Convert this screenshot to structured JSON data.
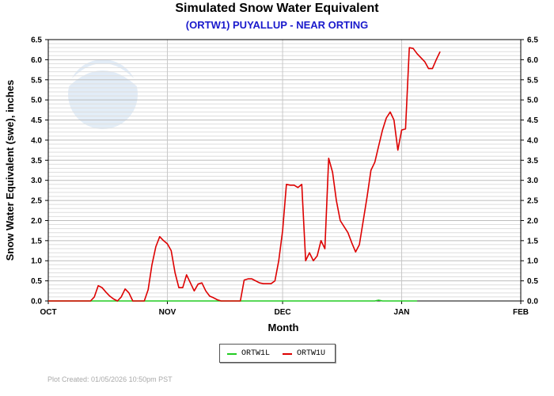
{
  "title": "Simulated Snow Water Equivalent",
  "subtitle": "(ORTW1) PUYALLUP - NEAR ORTING",
  "footer": "Plot Created:  01/05/2026 10:50pm PST",
  "logo_text": "NOAA",
  "chart_data": {
    "type": "line",
    "xlabel": "Month",
    "ylabel": "Snow Water Equivalent (swe),  inches",
    "x_ticks": [
      "OCT",
      "NOV",
      "DEC",
      "JAN",
      "FEB"
    ],
    "y_ticks": [
      "0.0",
      "0.5",
      "1.0",
      "1.5",
      "2.0",
      "2.5",
      "3.0",
      "3.5",
      "4.0",
      "4.5",
      "5.0",
      "5.5",
      "6.0",
      "6.5"
    ],
    "xlim": [
      "2025-10-01",
      "2026-02-01"
    ],
    "ylim": [
      0,
      6.5
    ],
    "grid": true,
    "legend_position": "bottom-center",
    "series": [
      {
        "name": "ORTW1L",
        "color": "#22cc22",
        "points": [
          [
            "2025-10-01",
            0.0
          ],
          [
            "2025-12-25",
            0.0
          ],
          [
            "2025-12-26",
            0.02
          ],
          [
            "2025-12-27",
            0.0
          ],
          [
            "2026-01-05",
            0.0
          ]
        ]
      },
      {
        "name": "ORTW1U",
        "color": "#dd0000",
        "points": [
          [
            "2025-10-01",
            0.0
          ],
          [
            "2025-10-12",
            0.0
          ],
          [
            "2025-10-13",
            0.1
          ],
          [
            "2025-10-14",
            0.38
          ],
          [
            "2025-10-15",
            0.33
          ],
          [
            "2025-10-16",
            0.22
          ],
          [
            "2025-10-17",
            0.12
          ],
          [
            "2025-10-18",
            0.05
          ],
          [
            "2025-10-19",
            0.0
          ],
          [
            "2025-10-20",
            0.1
          ],
          [
            "2025-10-21",
            0.3
          ],
          [
            "2025-10-22",
            0.2
          ],
          [
            "2025-10-23",
            0.0
          ],
          [
            "2025-10-26",
            0.0
          ],
          [
            "2025-10-27",
            0.28
          ],
          [
            "2025-10-28",
            0.9
          ],
          [
            "2025-10-29",
            1.35
          ],
          [
            "2025-10-30",
            1.6
          ],
          [
            "2025-10-31",
            1.5
          ],
          [
            "2025-11-01",
            1.42
          ],
          [
            "2025-11-02",
            1.25
          ],
          [
            "2025-11-03",
            0.7
          ],
          [
            "2025-11-04",
            0.33
          ],
          [
            "2025-11-05",
            0.33
          ],
          [
            "2025-11-06",
            0.65
          ],
          [
            "2025-11-07",
            0.45
          ],
          [
            "2025-11-08",
            0.25
          ],
          [
            "2025-11-09",
            0.42
          ],
          [
            "2025-11-10",
            0.45
          ],
          [
            "2025-11-11",
            0.25
          ],
          [
            "2025-11-12",
            0.12
          ],
          [
            "2025-11-13",
            0.08
          ],
          [
            "2025-11-14",
            0.03
          ],
          [
            "2025-11-15",
            0.0
          ],
          [
            "2025-11-20",
            0.0
          ],
          [
            "2025-11-21",
            0.52
          ],
          [
            "2025-11-22",
            0.55
          ],
          [
            "2025-11-23",
            0.55
          ],
          [
            "2025-11-24",
            0.5
          ],
          [
            "2025-11-25",
            0.45
          ],
          [
            "2025-11-26",
            0.43
          ],
          [
            "2025-11-28",
            0.43
          ],
          [
            "2025-11-29",
            0.5
          ],
          [
            "2025-11-30",
            1.0
          ],
          [
            "2025-12-01",
            1.75
          ],
          [
            "2025-12-02",
            2.9
          ],
          [
            "2025-12-03",
            2.88
          ],
          [
            "2025-12-04",
            2.88
          ],
          [
            "2025-12-05",
            2.82
          ],
          [
            "2025-12-06",
            2.9
          ],
          [
            "2025-12-07",
            1.0
          ],
          [
            "2025-12-08",
            1.2
          ],
          [
            "2025-12-09",
            1.0
          ],
          [
            "2025-12-10",
            1.12
          ],
          [
            "2025-12-11",
            1.5
          ],
          [
            "2025-12-12",
            1.3
          ],
          [
            "2025-12-13",
            3.55
          ],
          [
            "2025-12-14",
            3.2
          ],
          [
            "2025-12-15",
            2.5
          ],
          [
            "2025-12-16",
            2.0
          ],
          [
            "2025-12-17",
            1.85
          ],
          [
            "2025-12-18",
            1.7
          ],
          [
            "2025-12-19",
            1.45
          ],
          [
            "2025-12-20",
            1.22
          ],
          [
            "2025-12-21",
            1.4
          ],
          [
            "2025-12-22",
            2.0
          ],
          [
            "2025-12-23",
            2.6
          ],
          [
            "2025-12-24",
            3.25
          ],
          [
            "2025-12-25",
            3.45
          ],
          [
            "2025-12-26",
            3.85
          ],
          [
            "2025-12-27",
            4.25
          ],
          [
            "2025-12-28",
            4.55
          ],
          [
            "2025-12-29",
            4.7
          ],
          [
            "2025-12-30",
            4.5
          ],
          [
            "2025-12-31",
            3.75
          ],
          [
            "2026-01-01",
            4.25
          ],
          [
            "2026-01-02",
            4.28
          ],
          [
            "2026-01-03",
            6.3
          ],
          [
            "2026-01-04",
            6.28
          ],
          [
            "2026-01-05",
            6.15
          ],
          [
            "2026-01-06",
            6.05
          ],
          [
            "2026-01-07",
            5.95
          ],
          [
            "2026-01-08",
            5.78
          ],
          [
            "2026-01-09",
            5.78
          ],
          [
            "2026-01-10",
            6.0
          ],
          [
            "2026-01-11",
            6.2
          ]
        ]
      }
    ]
  },
  "legend": {
    "items": [
      {
        "name": "ORTW1L",
        "color": "#22cc22"
      },
      {
        "name": "ORTW1U",
        "color": "#dd0000"
      }
    ]
  }
}
